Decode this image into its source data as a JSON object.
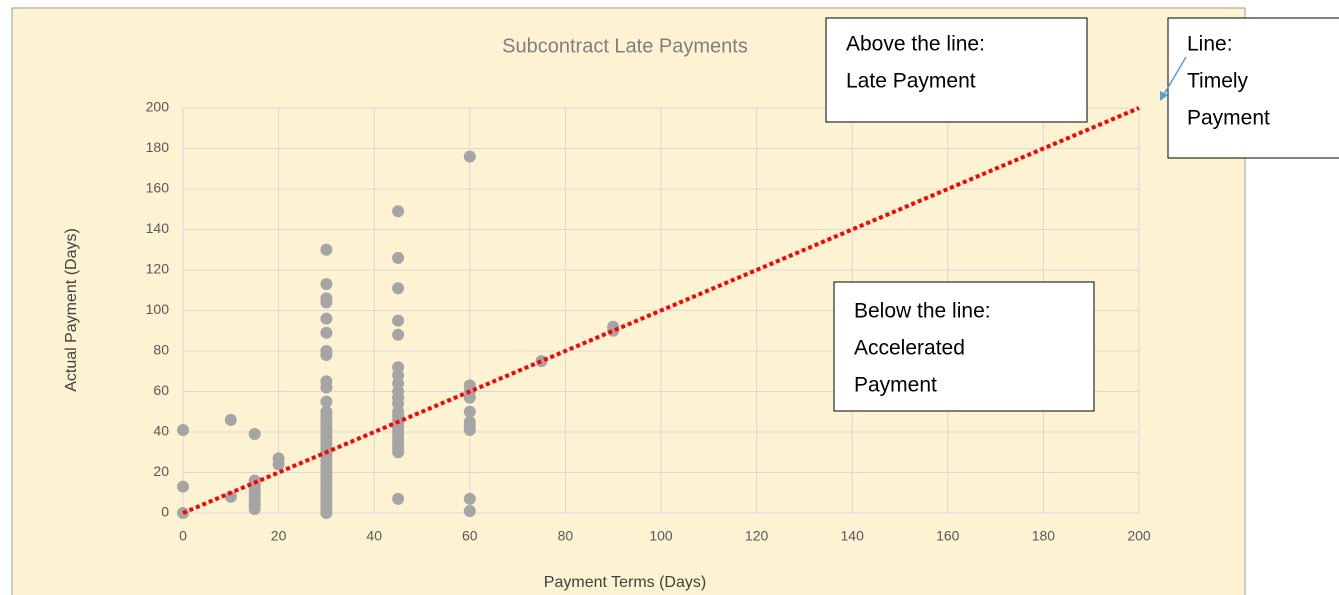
{
  "chart_data": {
    "type": "scatter",
    "title": "Subcontract Late Payments",
    "x_label": "Payment Terms (Days)",
    "y_label": "Actual Payment (Days)",
    "xlim": [
      0,
      200
    ],
    "ylim": [
      0,
      200
    ],
    "xticks": [
      0,
      20,
      40,
      60,
      80,
      100,
      120,
      140,
      160,
      180,
      200
    ],
    "yticks": [
      0,
      20,
      40,
      60,
      80,
      100,
      120,
      140,
      160,
      180,
      200
    ],
    "grid": true,
    "series": [
      {
        "color": "#a5a5a5",
        "x": [
          0,
          0,
          0,
          10,
          10,
          15,
          15,
          15,
          15,
          15,
          15,
          15,
          15,
          15,
          20,
          20,
          30,
          30,
          30,
          30,
          30,
          30,
          30,
          30,
          30,
          30,
          30,
          30,
          30,
          30,
          30,
          30,
          30,
          30,
          30,
          30,
          30,
          30,
          30,
          30,
          30,
          30,
          30,
          30,
          30,
          30,
          30,
          30,
          30,
          30,
          30,
          30,
          30,
          45,
          45,
          45,
          45,
          45,
          45,
          45,
          45,
          45,
          45,
          45,
          45,
          45,
          45,
          45,
          45,
          45,
          45,
          45,
          45,
          45,
          45,
          45,
          60,
          60,
          60,
          60,
          60,
          60,
          60,
          60,
          60,
          60,
          75,
          90,
          90
        ],
        "values": [
          41,
          13,
          0,
          46,
          8,
          39,
          16,
          14,
          12,
          10,
          8,
          6,
          4,
          2,
          27,
          24,
          130,
          113,
          106,
          104,
          96,
          89,
          80,
          78,
          65,
          62,
          55,
          50,
          48,
          46,
          44,
          42,
          40,
          38,
          36,
          34,
          32,
          30,
          28,
          26,
          24,
          22,
          20,
          18,
          16,
          14,
          12,
          10,
          8,
          6,
          4,
          2,
          0,
          149,
          126,
          111,
          95,
          88,
          72,
          68,
          64,
          60,
          57,
          54,
          50,
          48,
          46,
          44,
          42,
          40,
          38,
          36,
          34,
          32,
          30,
          7,
          176,
          63,
          60,
          57,
          50,
          45,
          43,
          41,
          7,
          1,
          75,
          92,
          90
        ]
      }
    ],
    "lines": [
      {
        "color": "#ff0000",
        "style": "dotted",
        "x": [
          0,
          200
        ],
        "values": [
          0,
          200
        ]
      }
    ],
    "annotations": [
      {
        "lines": [
          "Above the line:",
          "Late Payment"
        ]
      },
      {
        "lines": [
          "Line:",
          "Timely",
          "Payment"
        ]
      },
      {
        "lines": [
          "Below the line:",
          "Accelerated",
          "Payment"
        ]
      }
    ]
  }
}
